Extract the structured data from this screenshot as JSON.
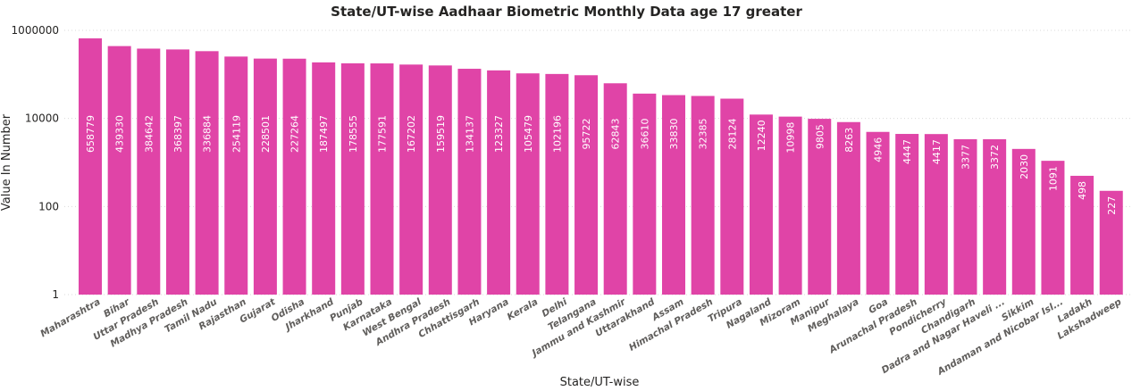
{
  "chart_data": {
    "type": "bar",
    "title": "State/UT-wise Aadhaar Biometric Monthly Data age 17 greater",
    "xlabel": "State/UT-wise",
    "ylabel": "Value In Number",
    "yscale": "log",
    "ylim": [
      1,
      1000000
    ],
    "yticks": [
      {
        "value": 1,
        "label": "1"
      },
      {
        "value": 100,
        "label": "100"
      },
      {
        "value": 10000,
        "label": "10000"
      },
      {
        "value": 1000000,
        "label": "1000000"
      }
    ],
    "bar_color": "#e044a7",
    "data_label_color": "#ffffff",
    "grid": true,
    "categories": [
      "Maharashtra",
      "Bihar",
      "Uttar Pradesh",
      "Madhya Pradesh",
      "Tamil Nadu",
      "Rajasthan",
      "Gujarat",
      "Odisha",
      "Jharkhand",
      "Punjab",
      "Karnataka",
      "West Bengal",
      "Andhra Pradesh",
      "Chhattisgarh",
      "Haryana",
      "Kerala",
      "Delhi",
      "Telangana",
      "Jammu and Kashmir",
      "Uttarakhand",
      "Assam",
      "Himachal Pradesh",
      "Tripura",
      "Nagaland",
      "Mizoram",
      "Manipur",
      "Meghalaya",
      "Goa",
      "Arunachal Pradesh",
      "Pondicherry",
      "Chandigarh",
      "Dadra and Nagar Haveli ...",
      "Sikkim",
      "Andaman and Nicobar Isl...",
      "Ladakh",
      "Lakshadweep"
    ],
    "values": [
      658779,
      439330,
      384642,
      368397,
      336884,
      254119,
      228501,
      227264,
      187497,
      178555,
      177591,
      167202,
      159519,
      134137,
      123327,
      105479,
      102196,
      95722,
      62843,
      36610,
      33830,
      32385,
      28124,
      12240,
      10998,
      9805,
      8263,
      4946,
      4447,
      4417,
      3377,
      3372,
      2030,
      1091,
      498,
      227
    ],
    "data_labels": [
      "658779",
      "439330",
      "384642",
      "368397",
      "336884",
      "254119",
      "228501",
      "227264",
      "187497",
      "178555",
      "177591",
      "167202",
      "159519",
      "134137",
      "123327",
      "105479",
      "102196",
      "95722",
      "62843",
      "36610",
      "33830",
      "32385",
      "28124",
      "12240",
      "10998",
      "9805",
      "8263",
      "4946",
      "4447",
      "4417",
      "3377",
      "3372",
      "2030",
      "1091",
      "498",
      "227"
    ]
  }
}
